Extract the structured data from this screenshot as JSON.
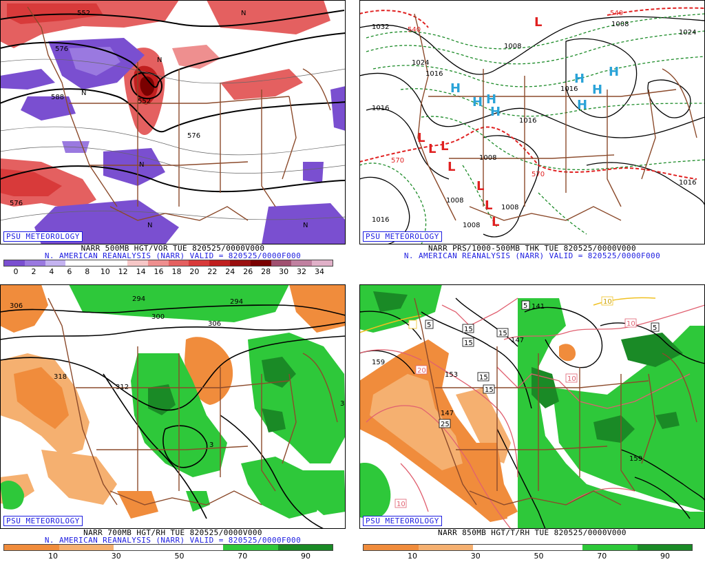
{
  "panels": [
    {
      "badge": "PSU METEOROLOGY",
      "caption": "NARR 500MB HGT/VOR TUE 820525/0000V000",
      "subtitle": "N. AMERICAN REANALYSIS (NARR) VALID = 820525/0000F000",
      "scale_ticks": [
        "0",
        "2",
        "4",
        "6",
        "8",
        "10",
        "12",
        "14",
        "16",
        "18",
        "20",
        "22",
        "24",
        "26",
        "28",
        "30",
        "32",
        "34"
      ],
      "scale_colors": [
        "#7a4fd0",
        "#9a79e0",
        "#c4b3f0",
        "#ffffff",
        "#ffffff",
        "#ffffff",
        "#f6c7c7",
        "#ee8f8f",
        "#e46060",
        "#d83a3a",
        "#c01f1f",
        "#9a0f0f",
        "#7a0000",
        "#a05070",
        "#c080a0",
        "#e0b0c8"
      ],
      "map_labels": [
        "552",
        "576",
        "588",
        "576",
        "576",
        "552",
        "N",
        "N",
        "N",
        "N",
        "N",
        "N"
      ]
    },
    {
      "badge": "PSU METEOROLOGY",
      "caption": "NARR PRS/1000-500MB THK TUE 820525/0000V000",
      "subtitle": "N. AMERICAN REANALYSIS (NARR) VALID = 820525/0000F000",
      "map_labels": [
        "540",
        "1032",
        "1024",
        "1008",
        "1016",
        "1016",
        "1016",
        "1008",
        "1008",
        "1008",
        "1016",
        "1016",
        "1008",
        "1024",
        "570",
        "570",
        "540"
      ],
      "highs": [
        "H",
        "H",
        "H",
        "H",
        "H",
        "H",
        "H",
        "H"
      ],
      "lows": [
        "L",
        "L",
        "L",
        "L",
        "L",
        "L",
        "L",
        "L"
      ]
    },
    {
      "badge": "PSU METEOROLOGY",
      "caption": "NARR 700MB HGT/RH TUE 820525/0000V000",
      "subtitle": "N. AMERICAN REANALYSIS (NARR) VALID = 820525/0000F000",
      "scale_ticks": [
        "10",
        "30",
        "50",
        "70",
        "90"
      ],
      "scale_colors": [
        "#f08c3c",
        "#f5b070",
        "#ffffff",
        "#ffffff",
        "#2ec83a",
        "#1a8a26"
      ],
      "map_labels": [
        "306",
        "294",
        "300",
        "306",
        "294",
        "318",
        "312",
        "3",
        "3",
        "312"
      ]
    },
    {
      "badge": "PSU METEOROLOGY",
      "caption": "NARR 850MB HGT/T/RH TUE 820525/0000V000",
      "subtitle": "",
      "scale_ticks": [
        "10",
        "30",
        "50",
        "70",
        "90"
      ],
      "scale_colors": [
        "#f08c3c",
        "#f5b070",
        "#ffffff",
        "#ffffff",
        "#2ec83a",
        "#1a8a26"
      ],
      "map_labels": [
        "5",
        "15",
        "15",
        "15",
        "147",
        "159",
        "153",
        "15",
        "15",
        "10",
        "20",
        "147",
        "25",
        "159",
        "10",
        "5",
        "141",
        "10",
        "10",
        "5"
      ]
    }
  ]
}
